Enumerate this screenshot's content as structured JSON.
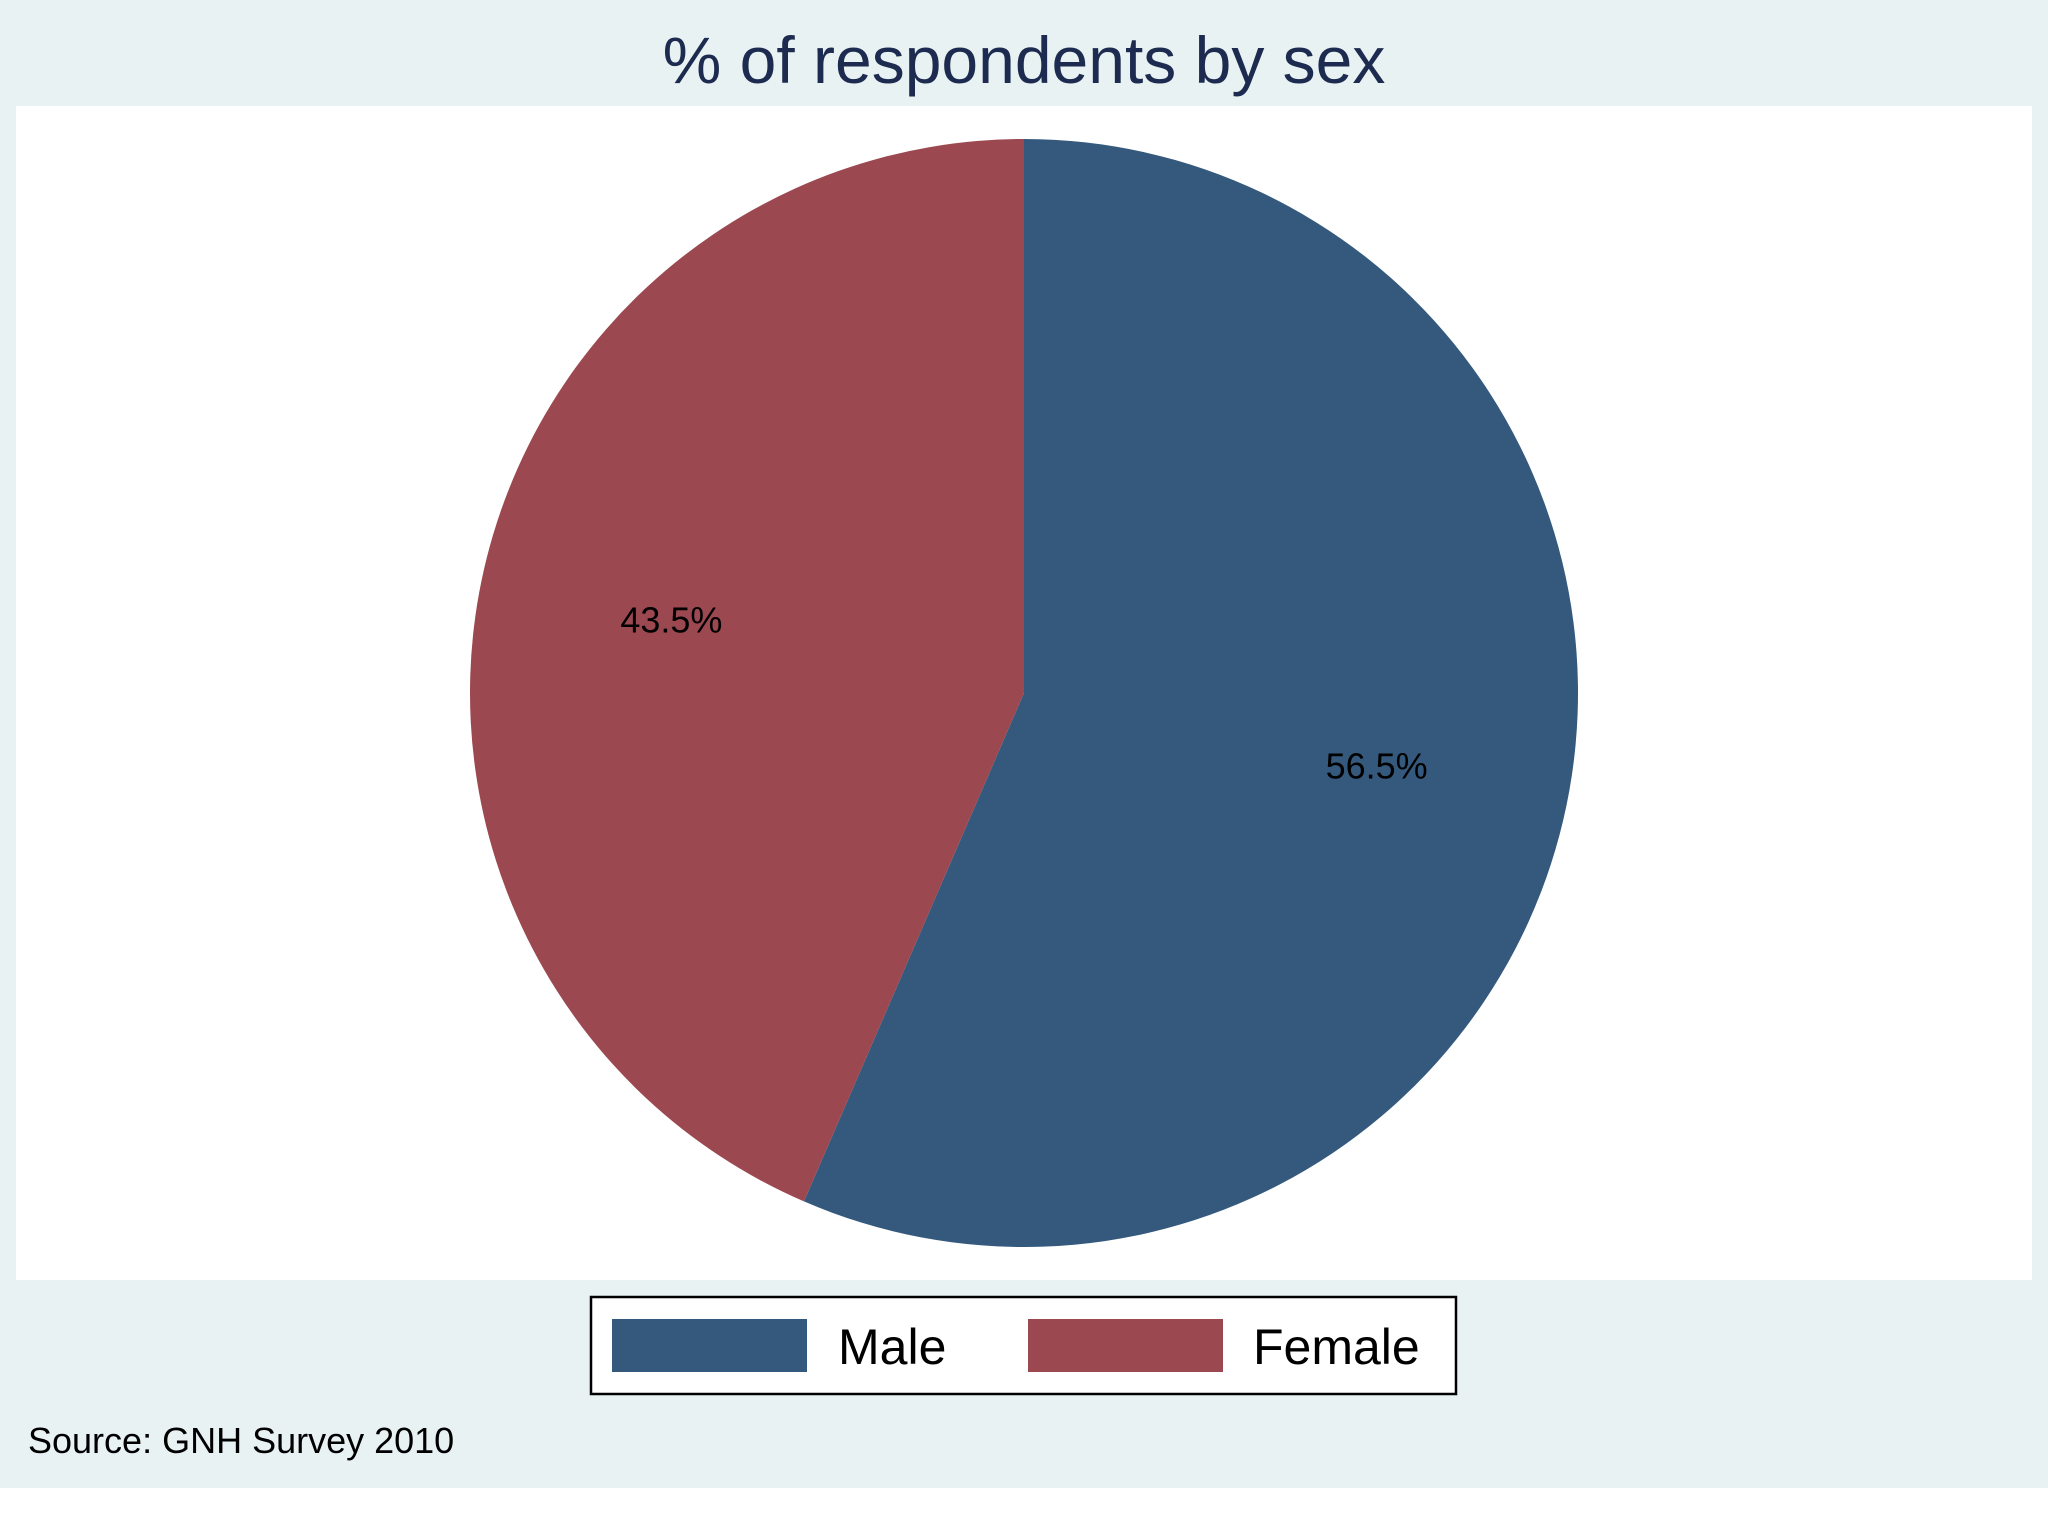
{
  "chart_data": {
    "type": "pie",
    "title": "% of respondents by sex",
    "slices": [
      {
        "name": "Male",
        "value": 56.5,
        "label": "56.5%",
        "color": "#34597d"
      },
      {
        "name": "Female",
        "value": 43.5,
        "label": "43.5%",
        "color": "#9b4850"
      }
    ],
    "legend_position": "bottom",
    "source": "Source: GNH Survey 2010"
  },
  "colors": {
    "background": "#e9f2f2",
    "plot_background": "#ffffff",
    "title": "#1c2b4f"
  }
}
